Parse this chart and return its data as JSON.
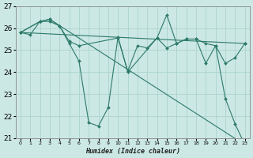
{
  "xlabel": "Humidex (Indice chaleur)",
  "bg_color": "#cce8e4",
  "grid_color": "#aad4cc",
  "line_color": "#2d7a6a",
  "marker_color": "#2d7a6a",
  "xlim": [
    -0.5,
    23.5
  ],
  "ylim": [
    21,
    27
  ],
  "yticks": [
    21,
    22,
    23,
    24,
    25,
    26,
    27
  ],
  "xticks": [
    0,
    1,
    2,
    3,
    4,
    5,
    6,
    7,
    8,
    9,
    10,
    11,
    12,
    13,
    14,
    15,
    16,
    17,
    18,
    19,
    20,
    21,
    22,
    23
  ],
  "series": [
    {
      "x": [
        0,
        1,
        2,
        3,
        4,
        5,
        6,
        7,
        8,
        9,
        10,
        11,
        14,
        15,
        16,
        17,
        18,
        19,
        20,
        21,
        22,
        23
      ],
      "y": [
        25.8,
        25.7,
        26.3,
        26.3,
        26.1,
        25.3,
        24.5,
        21.7,
        21.55,
        22.4,
        25.6,
        24.0,
        25.55,
        26.6,
        25.3,
        25.5,
        25.5,
        25.3,
        25.2,
        22.8,
        21.65,
        20.7
      ]
    },
    {
      "x": [
        0,
        2,
        3,
        4,
        5,
        6,
        10,
        11,
        12,
        13,
        14,
        15,
        16,
        17,
        18,
        19,
        20,
        21,
        22,
        23
      ],
      "y": [
        25.8,
        26.3,
        26.4,
        26.1,
        25.4,
        25.2,
        25.55,
        24.05,
        25.2,
        25.1,
        25.55,
        25.1,
        25.3,
        25.5,
        25.5,
        24.4,
        25.2,
        24.4,
        24.65,
        25.3
      ]
    },
    {
      "x": [
        0,
        2,
        3,
        23
      ],
      "y": [
        25.8,
        26.3,
        26.4,
        20.7
      ]
    },
    {
      "x": [
        0,
        23
      ],
      "y": [
        25.8,
        25.3
      ]
    }
  ]
}
